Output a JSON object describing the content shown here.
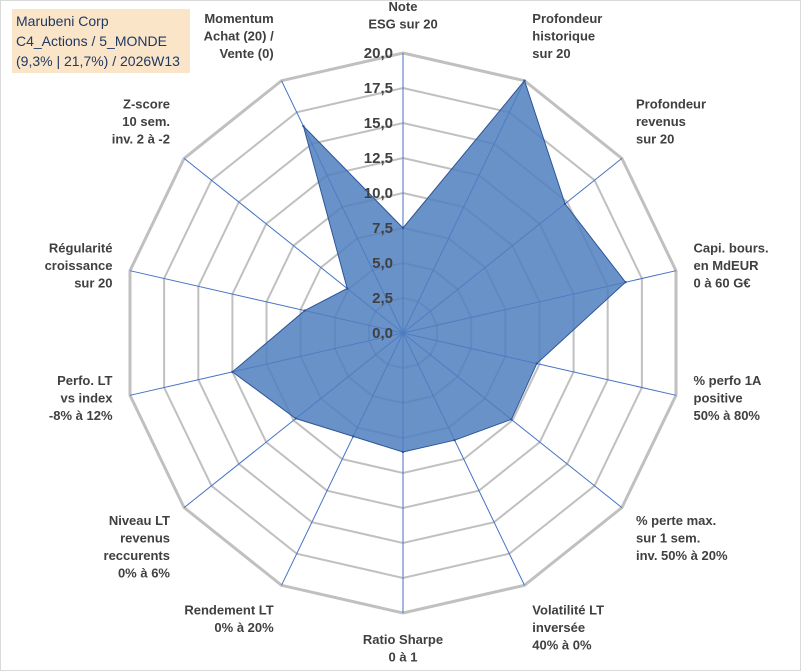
{
  "title_box": {
    "line1": "Marubeni Corp",
    "line2": "C4_Actions / 5_MONDE",
    "line3": "(9,3% | 21,7%) / 2026W13"
  },
  "colors": {
    "fill": "#4f7fbf",
    "stroke": "#2e5597",
    "grid": "#c0c0c0",
    "spoke": "#4472c4",
    "title_bg": "#fbe5c8",
    "text": "#404040"
  },
  "chart_data": {
    "type": "radar",
    "range": [
      0,
      20
    ],
    "tick_step": 2.5,
    "tick_labels": [
      "0,0",
      "2,5",
      "5,0",
      "7,5",
      "10,0",
      "12,5",
      "15,0",
      "17,5",
      "20,0"
    ],
    "categories": [
      [
        "Note",
        "ESG sur 20"
      ],
      [
        "Profondeur",
        "historique",
        "sur 20"
      ],
      [
        "Profondeur",
        "revenus",
        "sur 20"
      ],
      [
        "Capi. bours.",
        "en MdEUR",
        "0 à 60 G€"
      ],
      [
        "% perfo 1A",
        "positive",
        "50% à 80%"
      ],
      [
        "% perte max.",
        "sur 1 sem.",
        "inv. 50% à 20%"
      ],
      [
        "Volatilité LT",
        "inversée",
        "40% à 0%"
      ],
      [
        "Ratio Sharpe",
        "0 à 1"
      ],
      [
        "Rendement LT",
        "0% à 20%"
      ],
      [
        "Niveau LT",
        "revenus",
        "reccurents",
        "0% à 6%"
      ],
      [
        "Perfo. LT",
        "vs index",
        "-8% à 12%"
      ],
      [
        "Régularité",
        "croissance",
        "sur 20"
      ],
      [
        "Z-score",
        "10 sem.",
        "inv. 2 à -2"
      ],
      [
        "Momentum",
        "Achat (20) /",
        "Vente (0)"
      ]
    ],
    "series": [
      {
        "name": "Marubeni Corp",
        "values": [
          7.5,
          20.0,
          14.8,
          16.3,
          9.8,
          9.9,
          8.5,
          8.5,
          8.2,
          9.8,
          12.5,
          7.2,
          5.1,
          16.4
        ]
      }
    ]
  }
}
